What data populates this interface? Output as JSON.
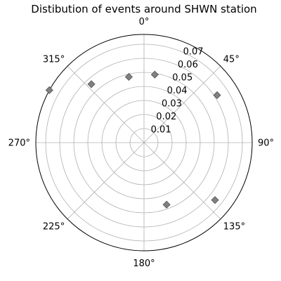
{
  "chart_data": {
    "type": "scatter",
    "projection": "polar",
    "title": "Distibution of events around SHWN station",
    "theta_zero_location": "N",
    "theta_direction": "clockwise",
    "theta_ticks": [
      {
        "deg": 0,
        "label": "0°"
      },
      {
        "deg": 45,
        "label": "45°"
      },
      {
        "deg": 90,
        "label": "90°"
      },
      {
        "deg": 135,
        "label": "135°"
      },
      {
        "deg": 180,
        "label": "180°"
      },
      {
        "deg": 225,
        "label": "225°"
      },
      {
        "deg": 270,
        "label": "270°"
      },
      {
        "deg": 315,
        "label": "315°"
      }
    ],
    "r_ticks": [
      {
        "value": 0.01,
        "label": "0.01"
      },
      {
        "value": 0.02,
        "label": "0.02"
      },
      {
        "value": 0.03,
        "label": "0.03"
      },
      {
        "value": 0.04,
        "label": "0.04"
      },
      {
        "value": 0.05,
        "label": "0.05"
      },
      {
        "value": 0.06,
        "label": "0.06"
      },
      {
        "value": 0.07,
        "label": "0.07"
      }
    ],
    "rlim": [
      0.0,
      0.077
    ],
    "grid": true,
    "marker": "diamond",
    "marker_color": "#808080",
    "marker_edge_color": "#555555",
    "points": [
      {
        "theta_deg": 9,
        "r": 0.049
      },
      {
        "theta_deg": 347,
        "r": 0.048
      },
      {
        "theta_deg": 318,
        "r": 0.056
      },
      {
        "theta_deg": 57,
        "r": 0.062
      },
      {
        "theta_deg": 299,
        "r": 0.077
      },
      {
        "theta_deg": 129,
        "r": 0.065
      },
      {
        "theta_deg": 160,
        "r": 0.047
      }
    ]
  }
}
